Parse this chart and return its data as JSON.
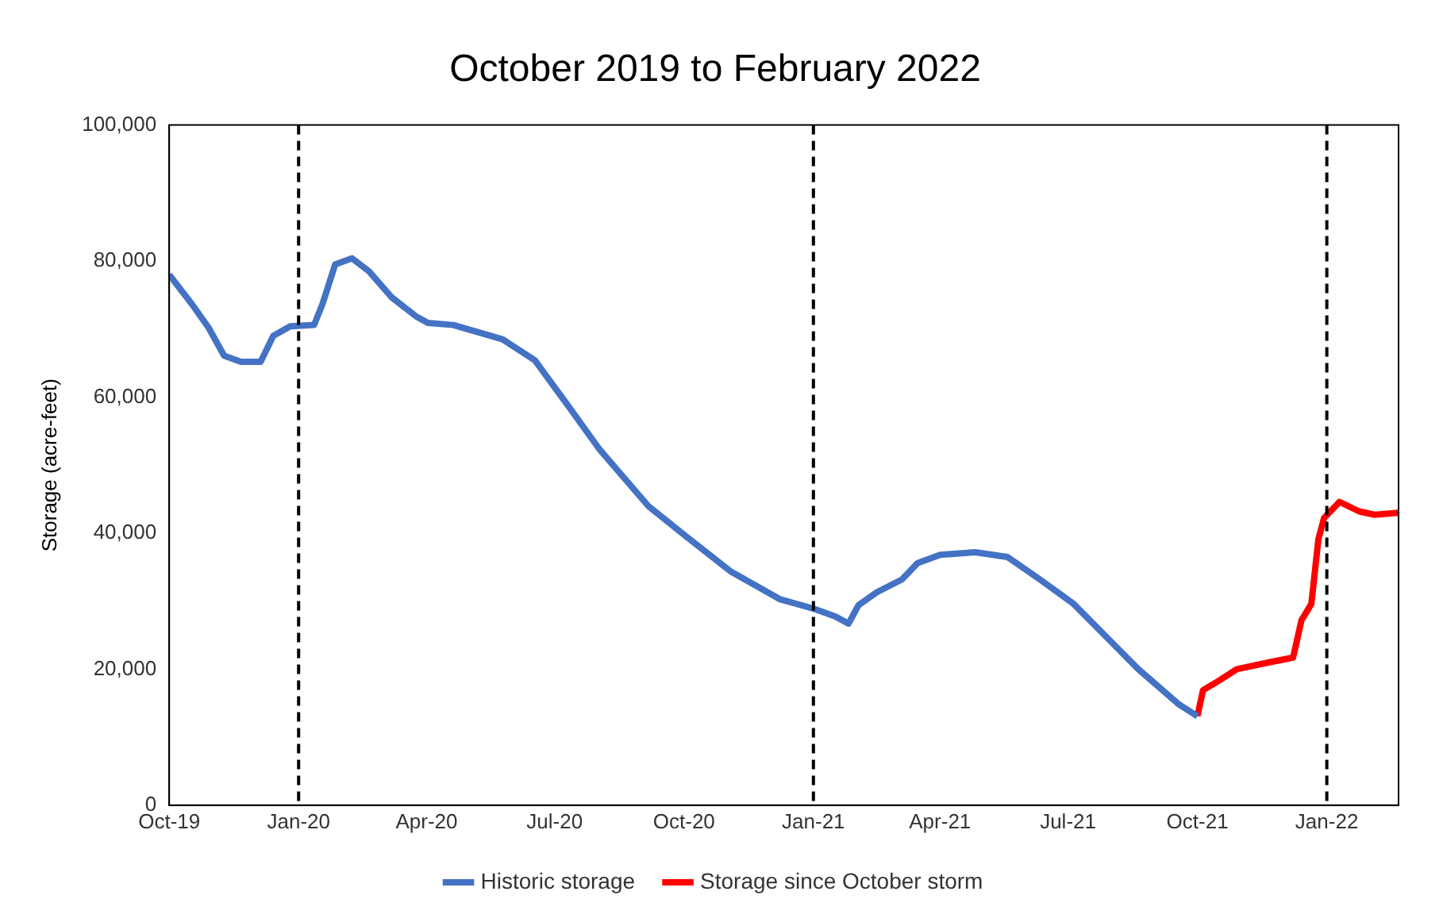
{
  "chart_data": {
    "type": "line",
    "title": "October 2019 to February 2022",
    "ylabel": "Storage (acre-feet)",
    "xlim": [
      "2019-10-01",
      "2022-02-21"
    ],
    "xticks": [
      {
        "value": "2019-10-01",
        "label": "Oct-19"
      },
      {
        "value": "2020-01-01",
        "label": "Jan-20"
      },
      {
        "value": "2020-04-01",
        "label": "Apr-20"
      },
      {
        "value": "2020-07-01",
        "label": "Jul-20"
      },
      {
        "value": "2020-10-01",
        "label": "Oct-20"
      },
      {
        "value": "2021-01-01",
        "label": "Jan-21"
      },
      {
        "value": "2021-04-01",
        "label": "Apr-21"
      },
      {
        "value": "2021-07-01",
        "label": "Jul-21"
      },
      {
        "value": "2021-10-01",
        "label": "Oct-21"
      },
      {
        "value": "2022-01-01",
        "label": "Jan-22"
      }
    ],
    "ylim": [
      0,
      100000
    ],
    "yticks": [
      {
        "value": 0,
        "label": "0"
      },
      {
        "value": 20000,
        "label": "20,000"
      },
      {
        "value": 40000,
        "label": "40,000"
      },
      {
        "value": 60000,
        "label": "60,000"
      },
      {
        "value": 80000,
        "label": "80,000"
      },
      {
        "value": 100000,
        "label": "100,000"
      }
    ],
    "grid": false,
    "legend": "bottom",
    "marker": "none",
    "ref_lines": [
      {
        "axis": "x",
        "value": "2020-01-01",
        "color": "#000000",
        "line_style": "dashed"
      },
      {
        "axis": "x",
        "value": "2021-01-01",
        "color": "#000000",
        "line_style": "dashed"
      },
      {
        "axis": "x",
        "value": "2022-01-01",
        "color": "#000000",
        "line_style": "dashed"
      }
    ],
    "series": [
      {
        "name": "Historic storage",
        "color": "#4472c4",
        "x": [
          "2019-10-01",
          "2019-10-17",
          "2019-10-29",
          "2019-11-09",
          "2019-11-21",
          "2019-12-05",
          "2019-12-14",
          "2019-12-26",
          "2020-01-12",
          "2020-01-18",
          "2020-01-27",
          "2020-02-08",
          "2020-02-20",
          "2020-03-07",
          "2020-03-25",
          "2020-04-02",
          "2020-04-20",
          "2020-05-25",
          "2020-06-17",
          "2020-07-10",
          "2020-08-02",
          "2020-09-06",
          "2020-10-02",
          "2020-11-03",
          "2020-12-08",
          "2021-01-01",
          "2021-01-17",
          "2021-01-26",
          "2021-02-02",
          "2021-02-15",
          "2021-03-05",
          "2021-03-16",
          "2021-04-01",
          "2021-04-26",
          "2021-05-19",
          "2021-06-11",
          "2021-07-05",
          "2021-07-28",
          "2021-08-20",
          "2021-09-18",
          "2021-10-01"
        ],
        "values": [
          78000,
          73700,
          70200,
          66100,
          65200,
          65200,
          69000,
          70400,
          70600,
          73700,
          79500,
          80400,
          78500,
          74700,
          71800,
          70900,
          70600,
          68500,
          65400,
          58900,
          52300,
          43900,
          39600,
          34400,
          30300,
          28900,
          27700,
          26700,
          29400,
          31300,
          33200,
          35600,
          36800,
          37200,
          36500,
          33200,
          29600,
          24800,
          20000,
          14800,
          13100
        ]
      },
      {
        "name": "Storage since October storm",
        "color": "#ff0000",
        "x": [
          "2021-10-01",
          "2021-10-05",
          "2021-10-17",
          "2021-10-29",
          "2021-11-21",
          "2021-12-08",
          "2021-12-14",
          "2021-12-21",
          "2021-12-26",
          "2021-12-30",
          "2022-01-10",
          "2022-01-24",
          "2022-02-04",
          "2022-02-21"
        ],
        "values": [
          13100,
          16900,
          18400,
          20000,
          21000,
          21700,
          27200,
          29600,
          39100,
          42200,
          44600,
          43200,
          42700,
          43000
        ]
      }
    ]
  }
}
